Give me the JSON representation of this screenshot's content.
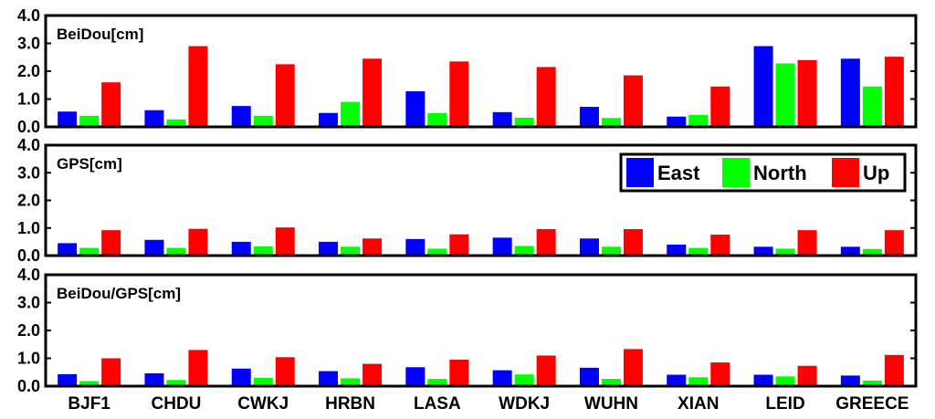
{
  "chart_data": {
    "type": "bar",
    "categories": [
      "BJF1",
      "CHDU",
      "CWKJ",
      "HRBN",
      "LASA",
      "WDKJ",
      "WUHN",
      "XIAN",
      "LEID",
      "GREECE"
    ],
    "ylim": [
      0,
      4
    ],
    "yticks": [
      "0.0",
      "1.0",
      "2.0",
      "3.0",
      "4.0"
    ],
    "legend": {
      "placement": "top-right of middle panel",
      "entries": [
        "East",
        "North",
        "Up"
      ]
    },
    "colors": {
      "East": "#0000ff",
      "North": "#00ff00",
      "Up": "#ff0000"
    },
    "panels": [
      {
        "title": "BeiDou[cm]",
        "series": [
          {
            "name": "East",
            "values": [
              0.55,
              0.6,
              0.75,
              0.5,
              1.28,
              0.53,
              0.72,
              0.37,
              2.9,
              2.45
            ]
          },
          {
            "name": "North",
            "values": [
              0.4,
              0.27,
              0.4,
              0.9,
              0.5,
              0.33,
              0.32,
              0.43,
              2.28,
              1.45
            ]
          },
          {
            "name": "Up",
            "values": [
              1.6,
              2.9,
              2.25,
              2.45,
              2.35,
              2.15,
              1.85,
              1.45,
              2.4,
              2.52
            ]
          }
        ]
      },
      {
        "title": "GPS[cm]",
        "series": [
          {
            "name": "East",
            "values": [
              0.45,
              0.57,
              0.5,
              0.5,
              0.6,
              0.65,
              0.62,
              0.4,
              0.32,
              0.32
            ]
          },
          {
            "name": "North",
            "values": [
              0.28,
              0.28,
              0.33,
              0.32,
              0.25,
              0.35,
              0.32,
              0.28,
              0.25,
              0.24
            ]
          },
          {
            "name": "Up",
            "values": [
              0.92,
              0.97,
              1.02,
              0.62,
              0.77,
              0.96,
              0.96,
              0.76,
              0.92,
              0.92
            ]
          }
        ]
      },
      {
        "title": "BeiDou/GPS[cm]",
        "series": [
          {
            "name": "East",
            "values": [
              0.43,
              0.46,
              0.63,
              0.54,
              0.68,
              0.57,
              0.66,
              0.41,
              0.41,
              0.38
            ]
          },
          {
            "name": "North",
            "values": [
              0.18,
              0.22,
              0.3,
              0.28,
              0.26,
              0.42,
              0.26,
              0.32,
              0.35,
              0.2
            ]
          },
          {
            "name": "Up",
            "values": [
              1.0,
              1.3,
              1.04,
              0.8,
              0.95,
              1.1,
              1.33,
              0.85,
              0.73,
              1.12
            ]
          }
        ]
      }
    ]
  }
}
